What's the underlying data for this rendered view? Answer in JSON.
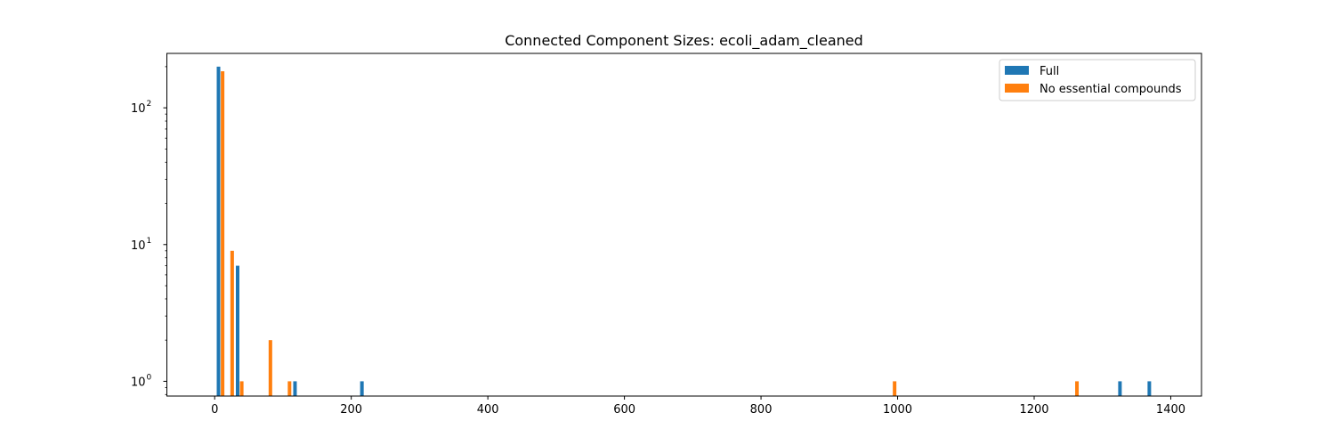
{
  "chart_data": {
    "type": "bar",
    "title": "Connected Component Sizes: ecoli_adam_cleaned",
    "xlabel": "",
    "ylabel": "",
    "xlim": [
      -70,
      1445
    ],
    "ylim": [
      0.78,
      250
    ],
    "yscale": "log",
    "x_ticks": [
      0,
      200,
      400,
      600,
      800,
      1000,
      1200,
      1400
    ],
    "x_tick_labels": [
      "0",
      "200",
      "400",
      "600",
      "800",
      "1000",
      "1200",
      "1400"
    ],
    "y_ticks": [
      1,
      10,
      100
    ],
    "y_tick_labels": [
      "10",
      "10",
      "10"
    ],
    "y_tick_exponents": [
      "0",
      "1",
      "2"
    ],
    "bin_width": 4,
    "legend_position": "top-right",
    "series": [
      {
        "name": "Full",
        "color": "#1f77b4",
        "points": [
          {
            "x": 5,
            "value": 200
          },
          {
            "x": 33,
            "value": 7
          },
          {
            "x": 117,
            "value": 1
          },
          {
            "x": 215,
            "value": 1
          },
          {
            "x": 1325,
            "value": 1
          },
          {
            "x": 1368,
            "value": 1
          }
        ]
      },
      {
        "name": "No essential compounds",
        "color": "#ff7f0e",
        "points": [
          {
            "x": 11,
            "value": 185
          },
          {
            "x": 25,
            "value": 9
          },
          {
            "x": 39,
            "value": 1
          },
          {
            "x": 81,
            "value": 2
          },
          {
            "x": 109,
            "value": 1
          },
          {
            "x": 995,
            "value": 1
          },
          {
            "x": 1262,
            "value": 1
          }
        ]
      }
    ]
  }
}
